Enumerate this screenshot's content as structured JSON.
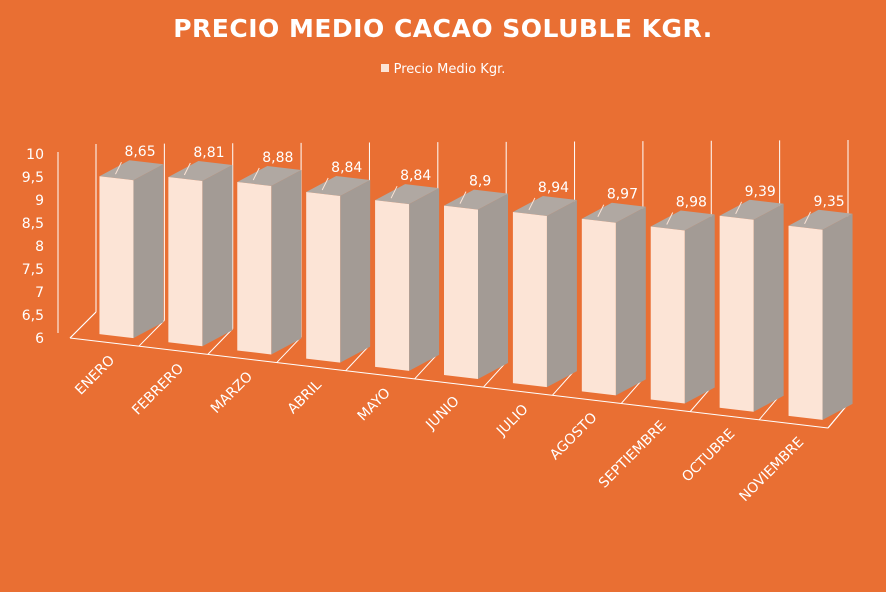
{
  "chart_data": {
    "type": "bar",
    "title": "PRECIO MEDIO CACAO SOLUBLE KGR.",
    "categories": [
      "ENERO",
      "FEBRERO",
      "MARZO",
      "ABRIL",
      "MAYO",
      "JUNIO",
      "JULIO",
      "AGOSTO",
      "SEPTIEMBRE",
      "OCTUBRE",
      "NOVIEMBRE"
    ],
    "series": [
      {
        "name": "Precio Medio Kgr.",
        "values": [
          8.65,
          8.81,
          8.88,
          8.84,
          8.84,
          8.9,
          8.94,
          8.97,
          8.98,
          9.39,
          9.35
        ],
        "labels": [
          "8,65",
          "8,81",
          "8,88",
          "8,84",
          "8,84",
          "8,9",
          "8,94",
          "8,97",
          "8,98",
          "9,39",
          "9,35"
        ]
      }
    ],
    "ylim": [
      6,
      10
    ],
    "yticks": [
      "6",
      "6,5",
      "7",
      "7,5",
      "8",
      "8,5",
      "9",
      "9,5",
      "10"
    ],
    "legend_position": "top-center",
    "grid": false,
    "bar_face_color": "#FCE4D6",
    "bar_side_color": "#A39B95",
    "background_color": "#E96F33"
  }
}
